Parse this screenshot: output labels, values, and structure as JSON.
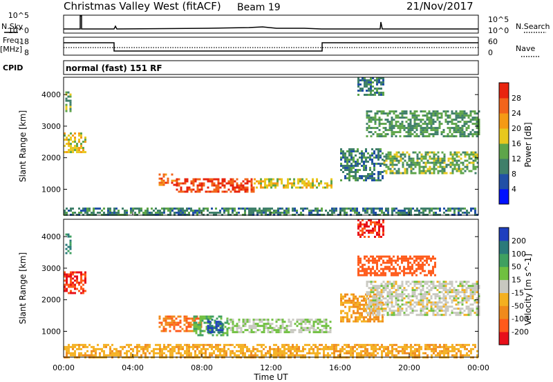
{
  "header": {
    "title": "Christmas Valley West (fitACF)",
    "beam": "Beam 19",
    "date": "21/Nov/2017"
  },
  "top_panels": {
    "nsky_label": "N.Sky",
    "nsky_ticks": [
      "10^5",
      "10^0"
    ],
    "nsearch_label": "N.Search",
    "nsearch_ticks": [
      "10^5",
      "10^0"
    ],
    "freq_label_1": "Freq.",
    "freq_label_2": "[MHz]",
    "freq_ticks": [
      "18",
      "8"
    ],
    "nave_label": "Nave",
    "nave_ticks": [
      "60",
      "0"
    ],
    "cpid_label": "CPID",
    "cpid_text": "normal (fast) 151 RF"
  },
  "x_axis": {
    "ticks": [
      "00:00",
      "04:00",
      "08:00",
      "12:00",
      "16:00",
      "20:00",
      "00:00"
    ],
    "label": "Time UT"
  },
  "colors": {
    "power": [
      "#0010ff",
      "#2150a6",
      "#3f7f6a",
      "#5ea54a",
      "#e8c81e",
      "#f59a14",
      "#f2641a",
      "#e8240e"
    ],
    "velocity": [
      "#e8101a",
      "#ff5a1a",
      "#f08a1c",
      "#f4b020",
      "#c8c8c0",
      "#70c040",
      "#3fa060",
      "#2a7a7a",
      "#1f3fbf"
    ]
  },
  "chart_data": [
    {
      "type": "heatmap",
      "panel": "power",
      "xlabel": "",
      "ylabel": "Slant Range [km]",
      "xlim_hours": [
        0,
        24
      ],
      "ylim_km": [
        180,
        4550
      ],
      "yticks": [
        "4000",
        "3000",
        "2000",
        "1000"
      ],
      "colorbar": {
        "label": "Power [dB]",
        "ticks": [
          "28",
          "24",
          "20",
          "16",
          "12",
          "8",
          "4"
        ]
      },
      "regions": [
        {
          "t0": 0.0,
          "t1": 1.3,
          "r0": 2200,
          "r1": 2800,
          "value": 18
        },
        {
          "t0": 0.1,
          "t1": 0.4,
          "r0": 3500,
          "r1": 4100,
          "value": 14
        },
        {
          "t0": 5.5,
          "t1": 6.5,
          "r0": 1150,
          "r1": 1500,
          "value": 26
        },
        {
          "t0": 6.5,
          "t1": 11.0,
          "r0": 950,
          "r1": 1350,
          "value": 28
        },
        {
          "t0": 11.0,
          "t1": 15.5,
          "r0": 1050,
          "r1": 1350,
          "value": 18
        },
        {
          "t0": 16.0,
          "t1": 18.5,
          "r0": 1300,
          "r1": 2300,
          "value": 10
        },
        {
          "t0": 17.5,
          "t1": 24.0,
          "r0": 2700,
          "r1": 3500,
          "value": 12
        },
        {
          "t0": 18.5,
          "t1": 24.0,
          "r0": 1500,
          "r1": 2200,
          "value": 14
        },
        {
          "t0": 17.0,
          "t1": 18.5,
          "r0": 4000,
          "r1": 4550,
          "value": 10
        },
        {
          "t0": 0.0,
          "t1": 24.0,
          "r0": 180,
          "r1": 420,
          "value": 10
        }
      ]
    },
    {
      "type": "heatmap",
      "panel": "velocity",
      "xlabel": "Time UT",
      "ylabel": "Slant Range [km]",
      "xlim_hours": [
        0,
        24
      ],
      "ylim_km": [
        180,
        4550
      ],
      "yticks": [
        "4000",
        "3000",
        "2000",
        "1000"
      ],
      "colorbar": {
        "label": "Velocity [m s^-1]",
        "ticks": [
          "200",
          "100",
          "50",
          "15",
          "-15",
          "-50",
          "-100",
          "-200"
        ]
      },
      "regions": [
        {
          "t0": 0.0,
          "t1": 1.3,
          "r0": 2200,
          "r1": 2900,
          "value": -200
        },
        {
          "t0": 0.1,
          "t1": 0.4,
          "r0": 3500,
          "r1": 4100,
          "value": 100
        },
        {
          "t0": 5.5,
          "t1": 8.0,
          "r0": 1000,
          "r1": 1500,
          "value": -100
        },
        {
          "t0": 7.5,
          "t1": 9.5,
          "r0": 900,
          "r1": 1500,
          "value": 50
        },
        {
          "t0": 8.3,
          "t1": 9.2,
          "r0": 950,
          "r1": 1400,
          "value": 200
        },
        {
          "t0": 9.5,
          "t1": 15.5,
          "r0": 1000,
          "r1": 1400,
          "value": 15
        },
        {
          "t0": 16.0,
          "t1": 18.5,
          "r0": 1300,
          "r1": 2200,
          "value": -50
        },
        {
          "t0": 17.5,
          "t1": 24.0,
          "r0": 1500,
          "r1": 2600,
          "value": 0
        },
        {
          "t0": 17.0,
          "t1": 21.5,
          "r0": 2800,
          "r1": 3400,
          "value": -150
        },
        {
          "t0": 17.0,
          "t1": 18.5,
          "r0": 4000,
          "r1": 4550,
          "value": -200
        },
        {
          "t0": 0.0,
          "t1": 24.0,
          "r0": 180,
          "r1": 600,
          "value": -40
        }
      ]
    }
  ]
}
